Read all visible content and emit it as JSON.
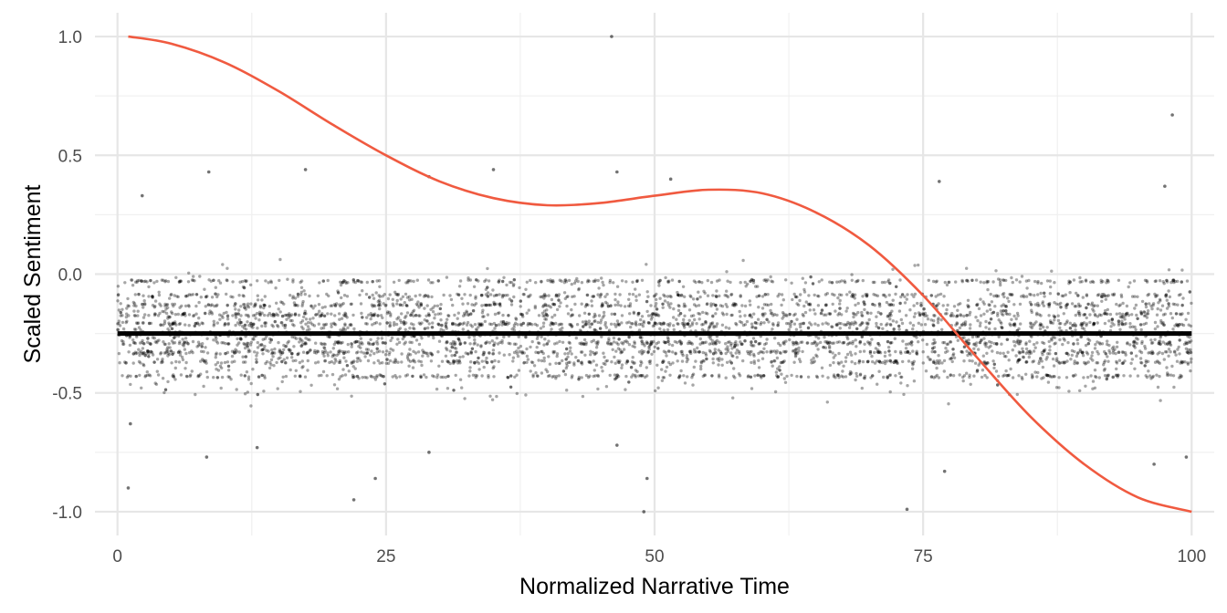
{
  "chart_data": {
    "type": "scatter",
    "title": "",
    "xlabel": "Normalized Narrative Time",
    "ylabel": "Scaled Sentiment",
    "xlim": [
      -2.1,
      102.1
    ],
    "ylim": [
      -1.1,
      1.1
    ],
    "x_ticks": [
      0,
      25,
      50,
      75,
      100
    ],
    "x_tick_labels": [
      "0",
      "25",
      "50",
      "75",
      "100"
    ],
    "y_ticks": [
      -1.0,
      -0.5,
      0.0,
      0.5,
      1.0
    ],
    "y_tick_labels": [
      "-1.0",
      "-0.5",
      "0.0",
      "0.5",
      "1.0"
    ],
    "grid": true,
    "legend": "none",
    "series": [
      {
        "kind": "scatter",
        "color": "#000000",
        "opacity": 0.35,
        "x_range": [
          0,
          100
        ],
        "approx_count": 5000,
        "typical_range": [
          -0.55,
          0.1
        ],
        "dense_level": -0.25,
        "notable_points": [
          {
            "x": 46.0,
            "y": 1.0
          },
          {
            "x": 98.2,
            "y": 0.67
          },
          {
            "x": 97.5,
            "y": 0.37
          },
          {
            "x": 35.0,
            "y": 0.44
          },
          {
            "x": 17.5,
            "y": 0.44
          },
          {
            "x": 8.5,
            "y": 0.43
          },
          {
            "x": 46.5,
            "y": 0.43
          },
          {
            "x": 29.0,
            "y": 0.41
          },
          {
            "x": 51.5,
            "y": 0.4
          },
          {
            "x": 76.5,
            "y": 0.39
          },
          {
            "x": 2.3,
            "y": 0.33
          },
          {
            "x": 1.0,
            "y": -0.9
          },
          {
            "x": 22.0,
            "y": -0.95
          },
          {
            "x": 49.0,
            "y": -1.0
          },
          {
            "x": 73.5,
            "y": -0.99
          },
          {
            "x": 8.3,
            "y": -0.77
          },
          {
            "x": 96.5,
            "y": -0.8
          },
          {
            "x": 77.0,
            "y": -0.83
          },
          {
            "x": 49.3,
            "y": -0.86
          },
          {
            "x": 24.0,
            "y": -0.86
          },
          {
            "x": 29.0,
            "y": -0.75
          },
          {
            "x": 99.5,
            "y": -0.77
          },
          {
            "x": 1.2,
            "y": -0.63
          },
          {
            "x": 46.5,
            "y": -0.72
          },
          {
            "x": 13.0,
            "y": -0.73
          }
        ]
      },
      {
        "kind": "line",
        "color": "#000000",
        "x": [
          0,
          100
        ],
        "y": [
          -0.25,
          -0.25
        ]
      },
      {
        "kind": "line",
        "color": "#F05A40",
        "x": [
          1,
          5,
          10,
          15,
          20,
          25,
          30,
          35,
          40,
          45,
          50,
          55,
          60,
          65,
          70,
          75,
          80,
          85,
          90,
          95,
          100
        ],
        "y": [
          1.0,
          0.97,
          0.89,
          0.77,
          0.63,
          0.5,
          0.39,
          0.32,
          0.29,
          0.3,
          0.33,
          0.355,
          0.34,
          0.26,
          0.12,
          -0.09,
          -0.35,
          -0.6,
          -0.8,
          -0.94,
          -1.0
        ]
      }
    ]
  }
}
